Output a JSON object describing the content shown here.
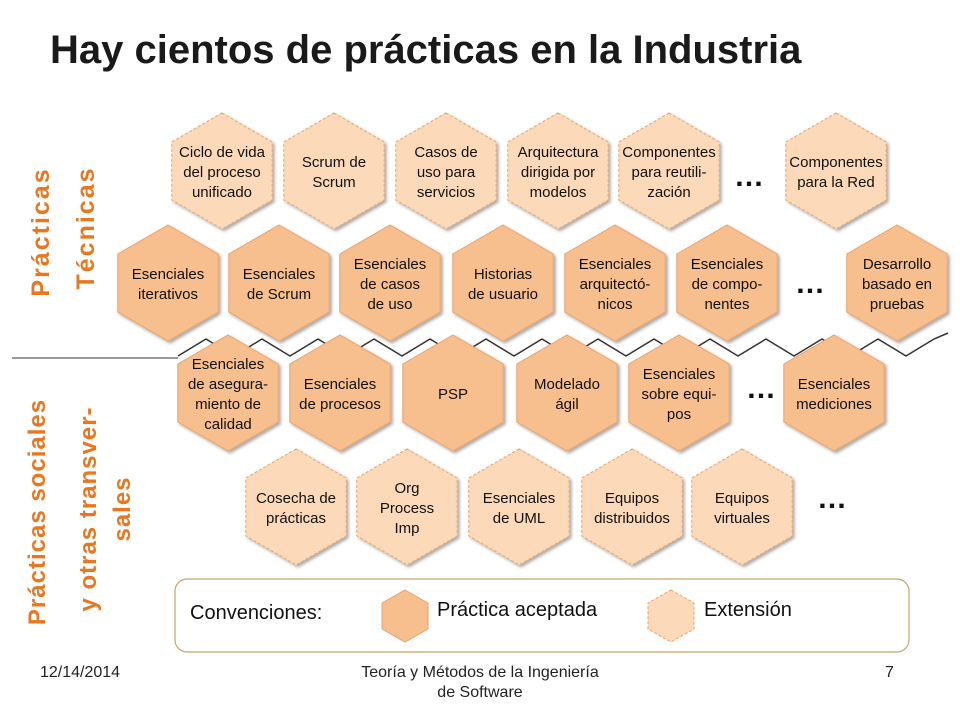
{
  "title": "Hay cientos de prácticas en la Industria",
  "colors": {
    "accepted": "#f8bf8e",
    "extension": "#fcd9b8",
    "accepted_stroke": "#e8a26a",
    "side_label": "#e87722",
    "frame": "#c9a46a"
  },
  "side_labels": {
    "practicas": "Prácticas",
    "tecnicas": "Técnicas",
    "sociales_1": "Prácticas sociales",
    "sociales_2": "y otras transver-",
    "sociales_3": "sales"
  },
  "hexes": [
    {
      "lines": [
        "Ciclo de vida",
        "del proceso",
        "unificado"
      ],
      "kind": "extension"
    },
    {
      "lines": [
        "Scrum de",
        "Scrum"
      ],
      "kind": "extension"
    },
    {
      "lines": [
        "Casos de",
        "uso para",
        "servicios"
      ],
      "kind": "extension"
    },
    {
      "lines": [
        "Arquitectura",
        "dirigida por",
        "modelos"
      ],
      "kind": "extension"
    },
    {
      "lines": [
        "Componentes",
        "para reutili-",
        "zación"
      ],
      "kind": "extension"
    },
    {
      "lines": [
        "Componentes",
        "para la Red"
      ],
      "kind": "extension"
    },
    {
      "lines": [
        "Esenciales",
        "iterativos"
      ],
      "kind": "accepted"
    },
    {
      "lines": [
        "Esenciales",
        "de Scrum"
      ],
      "kind": "accepted"
    },
    {
      "lines": [
        "Esenciales",
        "de casos",
        "de uso"
      ],
      "kind": "accepted"
    },
    {
      "lines": [
        "Historias",
        "de usuario"
      ],
      "kind": "accepted"
    },
    {
      "lines": [
        "Esenciales",
        "arquitectó-",
        "nicos"
      ],
      "kind": "accepted"
    },
    {
      "lines": [
        "Esenciales",
        "de compo-",
        "nentes"
      ],
      "kind": "accepted"
    },
    {
      "lines": [
        "Desarrollo",
        "basado en",
        "pruebas"
      ],
      "kind": "accepted"
    },
    {
      "lines": [
        "Esenciales",
        "de asegura-",
        "miento de",
        "calidad"
      ],
      "kind": "accepted"
    },
    {
      "lines": [
        "Esenciales",
        "de procesos"
      ],
      "kind": "accepted"
    },
    {
      "lines": [
        "PSP"
      ],
      "kind": "accepted"
    },
    {
      "lines": [
        "Modelado",
        "ágil"
      ],
      "kind": "accepted"
    },
    {
      "lines": [
        "Esenciales",
        "sobre equi-",
        "pos"
      ],
      "kind": "accepted"
    },
    {
      "lines": [
        "Esenciales",
        "mediciones"
      ],
      "kind": "accepted"
    },
    {
      "lines": [
        "Cosecha de",
        "prácticas"
      ],
      "kind": "extension"
    },
    {
      "lines": [
        "Org",
        "Process",
        "Imp"
      ],
      "kind": "extension"
    },
    {
      "lines": [
        "Esenciales",
        "de UML"
      ],
      "kind": "extension"
    },
    {
      "lines": [
        "Equipos",
        "distribuidos"
      ],
      "kind": "extension"
    },
    {
      "lines": [
        "Equipos",
        "virtuales"
      ],
      "kind": "extension"
    }
  ],
  "ellipsis": "…",
  "legend": {
    "label": "Convenciones:",
    "accepted": "Práctica aceptada",
    "extension": "Extensión"
  },
  "footer": {
    "date": "12/14/2014",
    "course_1": "Teoría y Métodos de la Ingeniería",
    "course_2": "de Software",
    "page": "7"
  }
}
